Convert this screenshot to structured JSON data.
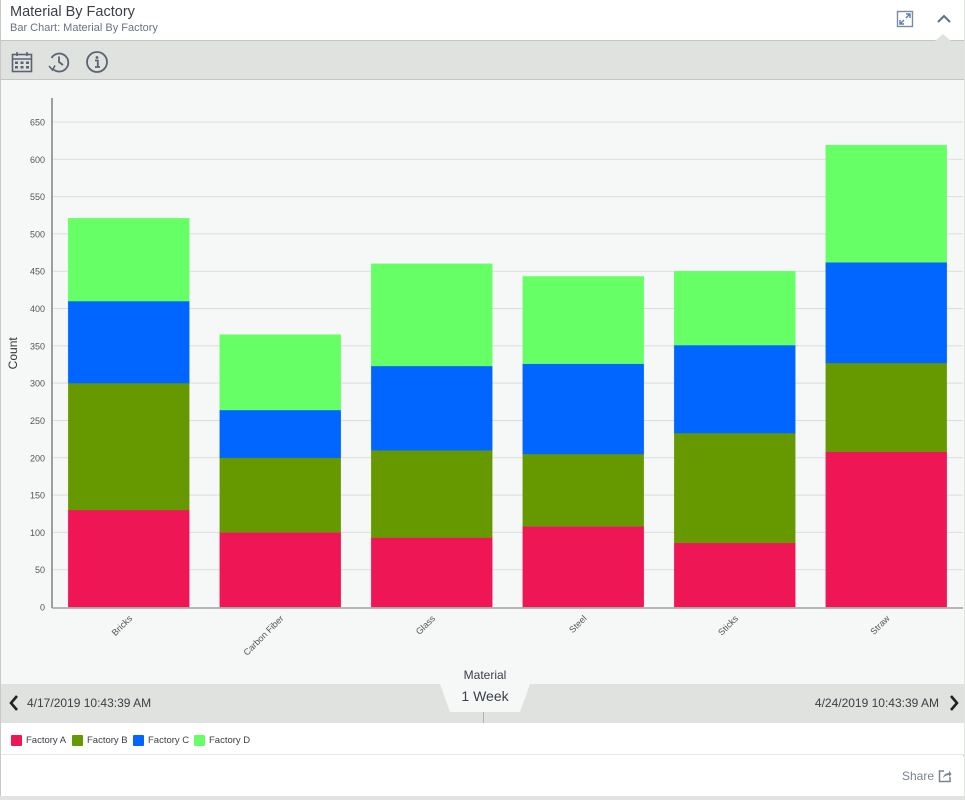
{
  "header": {
    "title": "Material By Factory",
    "subtitle": "Bar Chart: Material By Factory",
    "icons": [
      "expand-icon",
      "chevron-up-icon"
    ]
  },
  "toolbar": {
    "icons": [
      "calendar-icon",
      "history-icon",
      "info-icon"
    ]
  },
  "timebar": {
    "start": "4/17/2019 10:43:39 AM",
    "end": "4/24/2019 10:43:39 AM",
    "range": "1 Week"
  },
  "legend": [
    {
      "label": "Factory A",
      "color": "#ef1656"
    },
    {
      "label": "Factory B",
      "color": "#669900"
    },
    {
      "label": "Factory C",
      "color": "#0066ff"
    },
    {
      "label": "Factory D",
      "color": "#66ff66"
    }
  ],
  "footer": {
    "share_label": "Share"
  },
  "chart_data": {
    "type": "bar",
    "stacked": true,
    "title": "",
    "xlabel": "Material",
    "ylabel": "Count",
    "ylim": [
      0,
      650
    ],
    "yticks": [
      0,
      50,
      100,
      150,
      200,
      250,
      300,
      350,
      400,
      450,
      500,
      550,
      600,
      650
    ],
    "grid": true,
    "legend_position": "bottom-left",
    "categories": [
      "Bricks",
      "Carbon Fiber",
      "Glass",
      "Steel",
      "Sticks",
      "Straw"
    ],
    "series": [
      {
        "name": "Factory A",
        "color": "#ef1656",
        "values": [
          130,
          100,
          93,
          108,
          86,
          208
        ]
      },
      {
        "name": "Factory B",
        "color": "#669900",
        "values": [
          170,
          100,
          117,
          97,
          147,
          119
        ]
      },
      {
        "name": "Factory C",
        "color": "#0066ff",
        "values": [
          110,
          64,
          113,
          121,
          118,
          135
        ]
      },
      {
        "name": "Factory D",
        "color": "#66ff66",
        "values": [
          111,
          101,
          137,
          117,
          99,
          157
        ]
      }
    ]
  }
}
